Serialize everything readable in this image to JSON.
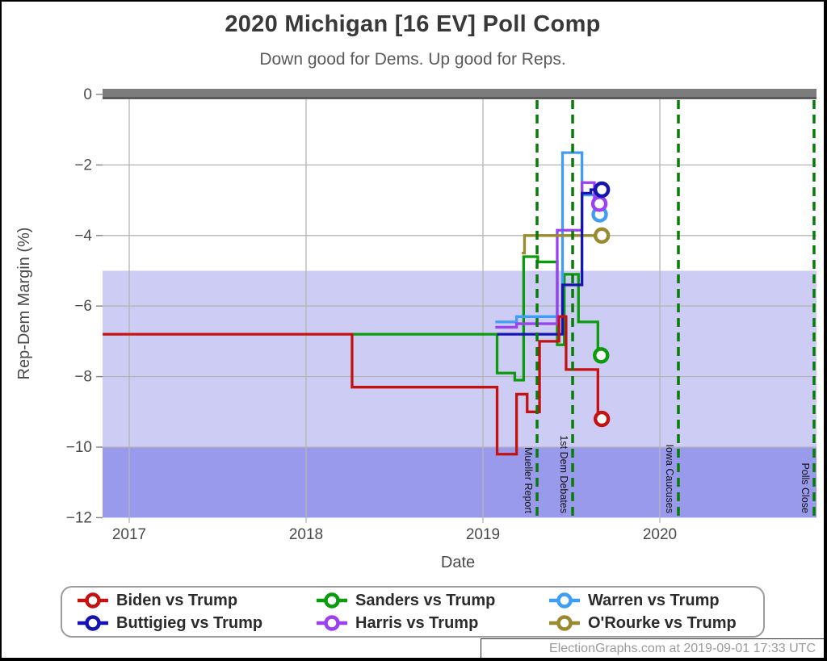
{
  "header": {
    "title": "2020 Michigan [16 EV] Poll Comp",
    "subtitle": "Down good for Dems. Up good for Reps."
  },
  "footer": {
    "text": "ElectionGraphs.com at 2019-09-01 17:33 UTC"
  },
  "chart_data": {
    "type": "line",
    "step": true,
    "title": "2020 Michigan [16 EV] Poll Comp",
    "subtitle": "Down good for Dems. Up good for Reps.",
    "xlabel": "Date",
    "ylabel": "Rep-Dem Margin (%)",
    "xlim": [
      2016.85,
      2020.89
    ],
    "ylim": [
      -12,
      0
    ],
    "grid": true,
    "legend_position": "bottom",
    "x_ticks": [
      {
        "value": 2017,
        "label": "2017"
      },
      {
        "value": 2018,
        "label": "2018"
      },
      {
        "value": 2019,
        "label": "2019"
      },
      {
        "value": 2020,
        "label": "2020"
      }
    ],
    "y_ticks": [
      {
        "value": 0,
        "label": "0"
      },
      {
        "value": -2,
        "label": "−2"
      },
      {
        "value": -4,
        "label": "−4"
      },
      {
        "value": -6,
        "label": "−6"
      },
      {
        "value": -8,
        "label": "−8"
      },
      {
        "value": -10,
        "label": "−10"
      },
      {
        "value": -12,
        "label": "−12"
      }
    ],
    "bands": [
      {
        "from": -5,
        "to": -10,
        "color": "#ccccf5"
      },
      {
        "from": -10,
        "to": -12,
        "color": "#9a9aec"
      }
    ],
    "colors": {
      "zero_bar": "#7c7c7c",
      "zero_bar_edge": "#5c5c5c",
      "gridline": "#b5b5b5",
      "tick": "#8a8a8a",
      "annotation": "#077c07",
      "axis_text": "#4a4a4a"
    },
    "annotations": [
      {
        "label": "Mueller Report",
        "x": 2019.306
      },
      {
        "label": "1st Dem Debates",
        "x": 2019.507
      },
      {
        "label": "Iowa Caucuses",
        "x": 2020.105
      },
      {
        "label": "Polls Close",
        "x": 2020.872
      }
    ],
    "series": [
      {
        "id": "biden",
        "label": "Biden vs Trump",
        "color": "#c41212",
        "steps": [
          [
            2016.85,
            -6.8
          ],
          [
            2018.26,
            -8.3
          ],
          [
            2019.08,
            -10.2
          ],
          [
            2019.19,
            -8.5
          ],
          [
            2019.25,
            -9.0
          ],
          [
            2019.32,
            -7.0
          ],
          [
            2019.43,
            -6.3
          ],
          [
            2019.47,
            -7.8
          ],
          [
            2019.65,
            -9.2
          ]
        ],
        "end": [
          2019.672,
          -9.2
        ]
      },
      {
        "id": "sanders",
        "label": "Sanders vs Trump",
        "color": "#0c9b0c",
        "steps": [
          [
            2018.26,
            -6.8
          ],
          [
            2019.08,
            -7.9
          ],
          [
            2019.18,
            -8.1
          ],
          [
            2019.23,
            -4.6
          ],
          [
            2019.31,
            -4.75
          ],
          [
            2019.42,
            -7.1
          ],
          [
            2019.46,
            -5.1
          ],
          [
            2019.54,
            -6.45
          ],
          [
            2019.65,
            -7.4
          ]
        ],
        "end": [
          2019.668,
          -7.4
        ]
      },
      {
        "id": "warren",
        "label": "Warren vs Trump",
        "color": "#3f9ef4",
        "steps": [
          [
            2019.07,
            -6.45
          ],
          [
            2019.19,
            -6.3
          ],
          [
            2019.45,
            -1.65
          ],
          [
            2019.56,
            -2.85
          ],
          [
            2019.64,
            -3.4
          ]
        ],
        "end": [
          2019.66,
          -3.4
        ]
      },
      {
        "id": "buttigieg",
        "label": "Buttigieg vs Trump",
        "color": "#1414b2",
        "steps": [
          [
            2019.08,
            -6.8
          ],
          [
            2019.45,
            -5.4
          ],
          [
            2019.56,
            -2.8
          ],
          [
            2019.61,
            -2.7
          ]
        ],
        "end": [
          2019.672,
          -2.7
        ]
      },
      {
        "id": "harris",
        "label": "Harris vs Trump",
        "color": "#9a41f0",
        "steps": [
          [
            2019.07,
            -6.6
          ],
          [
            2019.19,
            -6.5
          ],
          [
            2019.42,
            -3.85
          ],
          [
            2019.56,
            -2.5
          ],
          [
            2019.63,
            -3.1
          ]
        ],
        "end": [
          2019.658,
          -3.1
        ]
      },
      {
        "id": "orourke",
        "label": "O'Rourke vs Trump",
        "color": "#99892f",
        "steps": [
          [
            2019.22,
            -4.5
          ],
          [
            2019.235,
            -4.0
          ]
        ],
        "end": [
          2019.672,
          -4.0
        ]
      }
    ]
  }
}
